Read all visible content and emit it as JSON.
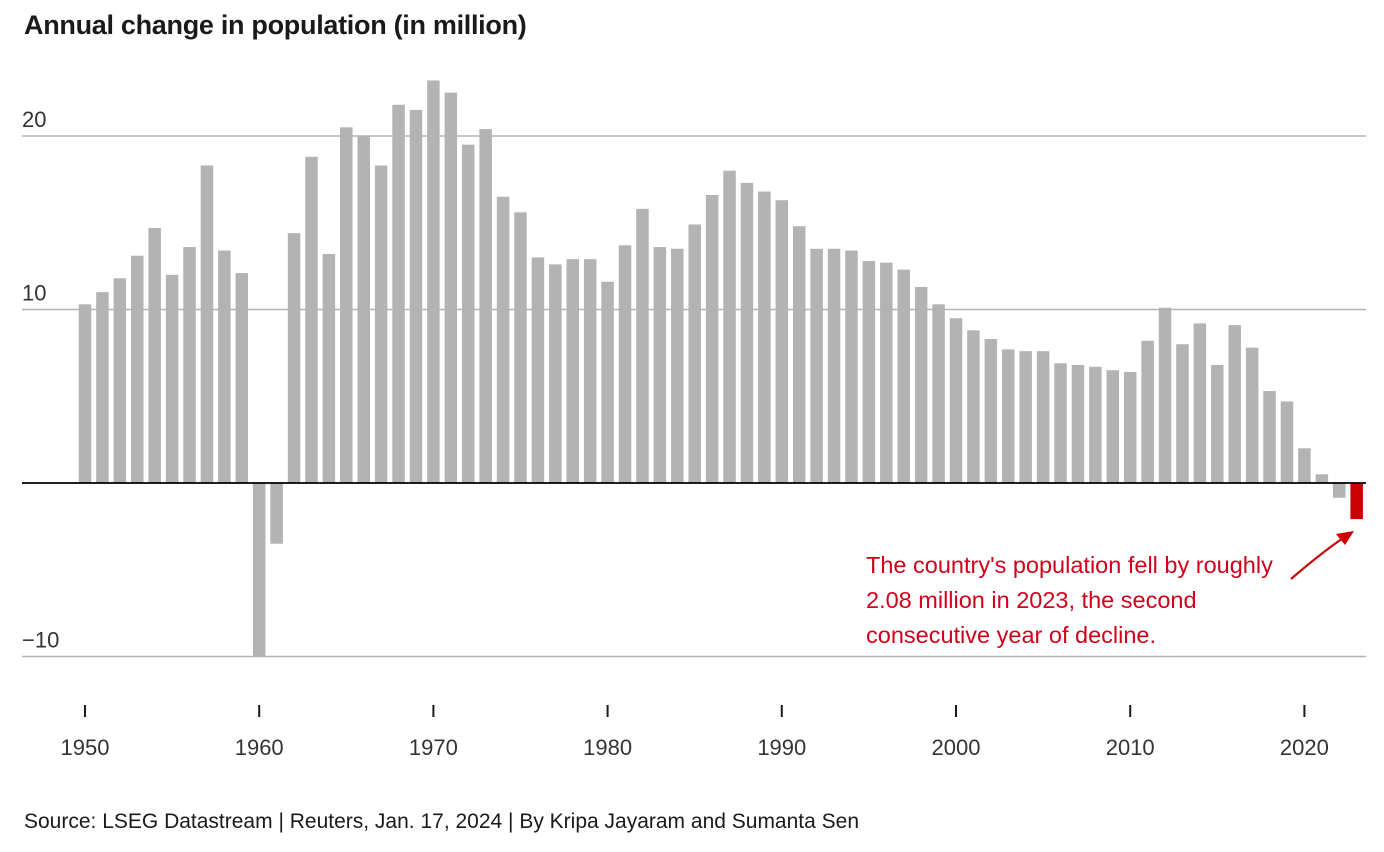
{
  "title": "Annual change in population (in million)",
  "annotation": "The country's population fell by roughly 2.08 million in 2023, the second consecutive year of decline.",
  "source": "Source: LSEG Datastream | Reuters, Jan. 17, 2024 | By Kripa Jayaram and Sumanta Sen",
  "colors": {
    "bar": "#b3b3b3",
    "highlight": "#cc0000",
    "grid": "#b3b3b3",
    "zero_line": "#000000",
    "annotation": "#d0021b"
  },
  "chart_data": {
    "type": "bar",
    "title": "Annual change in population (in million)",
    "xlabel": "",
    "ylabel": "",
    "ylim": [
      -10,
      23.3
    ],
    "yticks": [
      -10,
      10,
      20
    ],
    "ytick_labels": [
      "−10",
      "10",
      "20"
    ],
    "xticks": [
      1950,
      1960,
      1970,
      1980,
      1990,
      2000,
      2010,
      2020
    ],
    "xtick_labels": [
      "1950",
      "1960",
      "1970",
      "1980",
      "1990",
      "2000",
      "2010",
      "2020"
    ],
    "grid": true,
    "highlight": [
      2023
    ],
    "x": [
      1950,
      1951,
      1952,
      1953,
      1954,
      1955,
      1956,
      1957,
      1958,
      1959,
      1960,
      1961,
      1962,
      1963,
      1964,
      1965,
      1966,
      1967,
      1968,
      1969,
      1970,
      1971,
      1972,
      1973,
      1974,
      1975,
      1976,
      1977,
      1978,
      1979,
      1980,
      1981,
      1982,
      1983,
      1984,
      1985,
      1986,
      1987,
      1988,
      1989,
      1990,
      1991,
      1992,
      1993,
      1994,
      1995,
      1996,
      1997,
      1998,
      1999,
      2000,
      2001,
      2002,
      2003,
      2004,
      2005,
      2006,
      2007,
      2008,
      2009,
      2010,
      2011,
      2012,
      2013,
      2014,
      2015,
      2016,
      2017,
      2018,
      2019,
      2020,
      2021,
      2022,
      2023
    ],
    "values": [
      10.3,
      11.0,
      11.8,
      13.1,
      14.7,
      12.0,
      13.6,
      18.3,
      13.4,
      12.1,
      -10.0,
      -3.5,
      14.4,
      18.8,
      13.2,
      20.5,
      20.0,
      18.3,
      21.8,
      21.5,
      23.2,
      22.5,
      19.5,
      20.4,
      16.5,
      15.6,
      13.0,
      12.6,
      12.9,
      12.9,
      11.6,
      13.7,
      15.8,
      13.6,
      13.5,
      14.9,
      16.6,
      18.0,
      17.3,
      16.8,
      16.3,
      14.8,
      13.5,
      13.5,
      13.4,
      12.8,
      12.7,
      12.3,
      11.3,
      10.3,
      9.5,
      8.8,
      8.3,
      7.7,
      7.6,
      7.6,
      6.9,
      6.8,
      6.7,
      6.5,
      6.4,
      8.2,
      10.1,
      8.0,
      9.2,
      6.8,
      9.1,
      7.8,
      5.3,
      4.7,
      2.0,
      0.5,
      -0.85,
      -2.08
    ]
  }
}
